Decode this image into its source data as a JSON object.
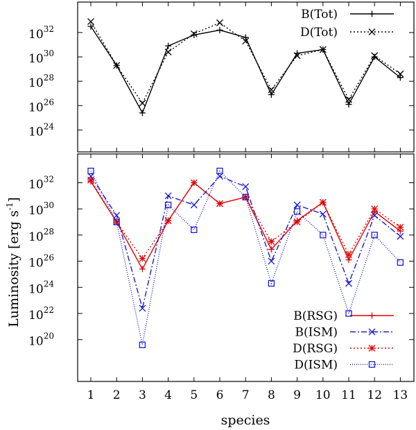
{
  "chart_data": [
    {
      "type": "line",
      "panel": "top",
      "categories": [
        1,
        2,
        3,
        4,
        5,
        6,
        7,
        8,
        9,
        10,
        11,
        12,
        13
      ],
      "y_scale": "log10",
      "ylim_exponents": [
        22.2,
        34.5
      ],
      "ytick_base": "10",
      "ytick_exponents": [
        "24",
        "26",
        "28",
        "30",
        "32"
      ],
      "legend_position": "top-right",
      "series": [
        {
          "name": "B(Tot)",
          "color": "#000000",
          "dash": "solid",
          "marker": "plus",
          "values_log10": [
            32.5,
            29.3,
            25.4,
            30.9,
            31.8,
            32.2,
            31.6,
            26.9,
            30.3,
            30.6,
            26.1,
            30.0,
            28.3
          ]
        },
        {
          "name": "D(Tot)",
          "color": "#000000",
          "dash": "dotted",
          "marker": "cross",
          "values_log10": [
            32.9,
            29.3,
            26.2,
            30.4,
            31.9,
            32.8,
            31.3,
            27.3,
            30.1,
            30.6,
            26.5,
            30.1,
            28.6
          ]
        }
      ]
    },
    {
      "type": "line",
      "panel": "bottom",
      "categories": [
        1,
        2,
        3,
        4,
        5,
        6,
        7,
        8,
        9,
        10,
        11,
        12,
        13
      ],
      "y_scale": "log10",
      "ylim_exponents": [
        16.8,
        34.2
      ],
      "ytick_base": "10",
      "ytick_exponents": [
        "20",
        "22",
        "24",
        "26",
        "28",
        "30",
        "32"
      ],
      "xlabel": "species",
      "ylabel_text": "Luminosity [erg s",
      "ylabel_sup": "-1",
      "ylabel_close": "]",
      "legend_position": "bottom-right",
      "series": [
        {
          "name": "B(RSG)",
          "color": "#e00000",
          "dash": "solid",
          "marker": "plus",
          "values_log10": [
            32.1,
            29.0,
            25.4,
            29.1,
            32.0,
            30.4,
            30.9,
            26.9,
            29.1,
            30.5,
            26.1,
            29.8,
            28.3
          ]
        },
        {
          "name": "B(ISM)",
          "color": "#1a1acc",
          "dash": "dashdot",
          "marker": "cross",
          "values_log10": [
            32.5,
            29.5,
            22.4,
            31.0,
            30.3,
            32.5,
            31.7,
            26.0,
            30.3,
            29.6,
            24.3,
            29.5,
            27.9
          ]
        },
        {
          "name": "D(RSG)",
          "color": "#e00000",
          "dash": "dotted",
          "marker": "star",
          "values_log10": [
            32.2,
            29.0,
            26.2,
            29.1,
            32.0,
            30.4,
            30.9,
            27.5,
            29.0,
            30.5,
            26.5,
            30.0,
            28.6
          ]
        },
        {
          "name": "D(ISM)",
          "color": "#1a1acc",
          "dash": "densedot",
          "marker": "square",
          "values_log10": [
            32.9,
            29.0,
            19.6,
            30.3,
            28.4,
            32.9,
            30.9,
            24.3,
            29.8,
            28.0,
            22.0,
            28.0,
            25.9
          ]
        }
      ]
    }
  ]
}
